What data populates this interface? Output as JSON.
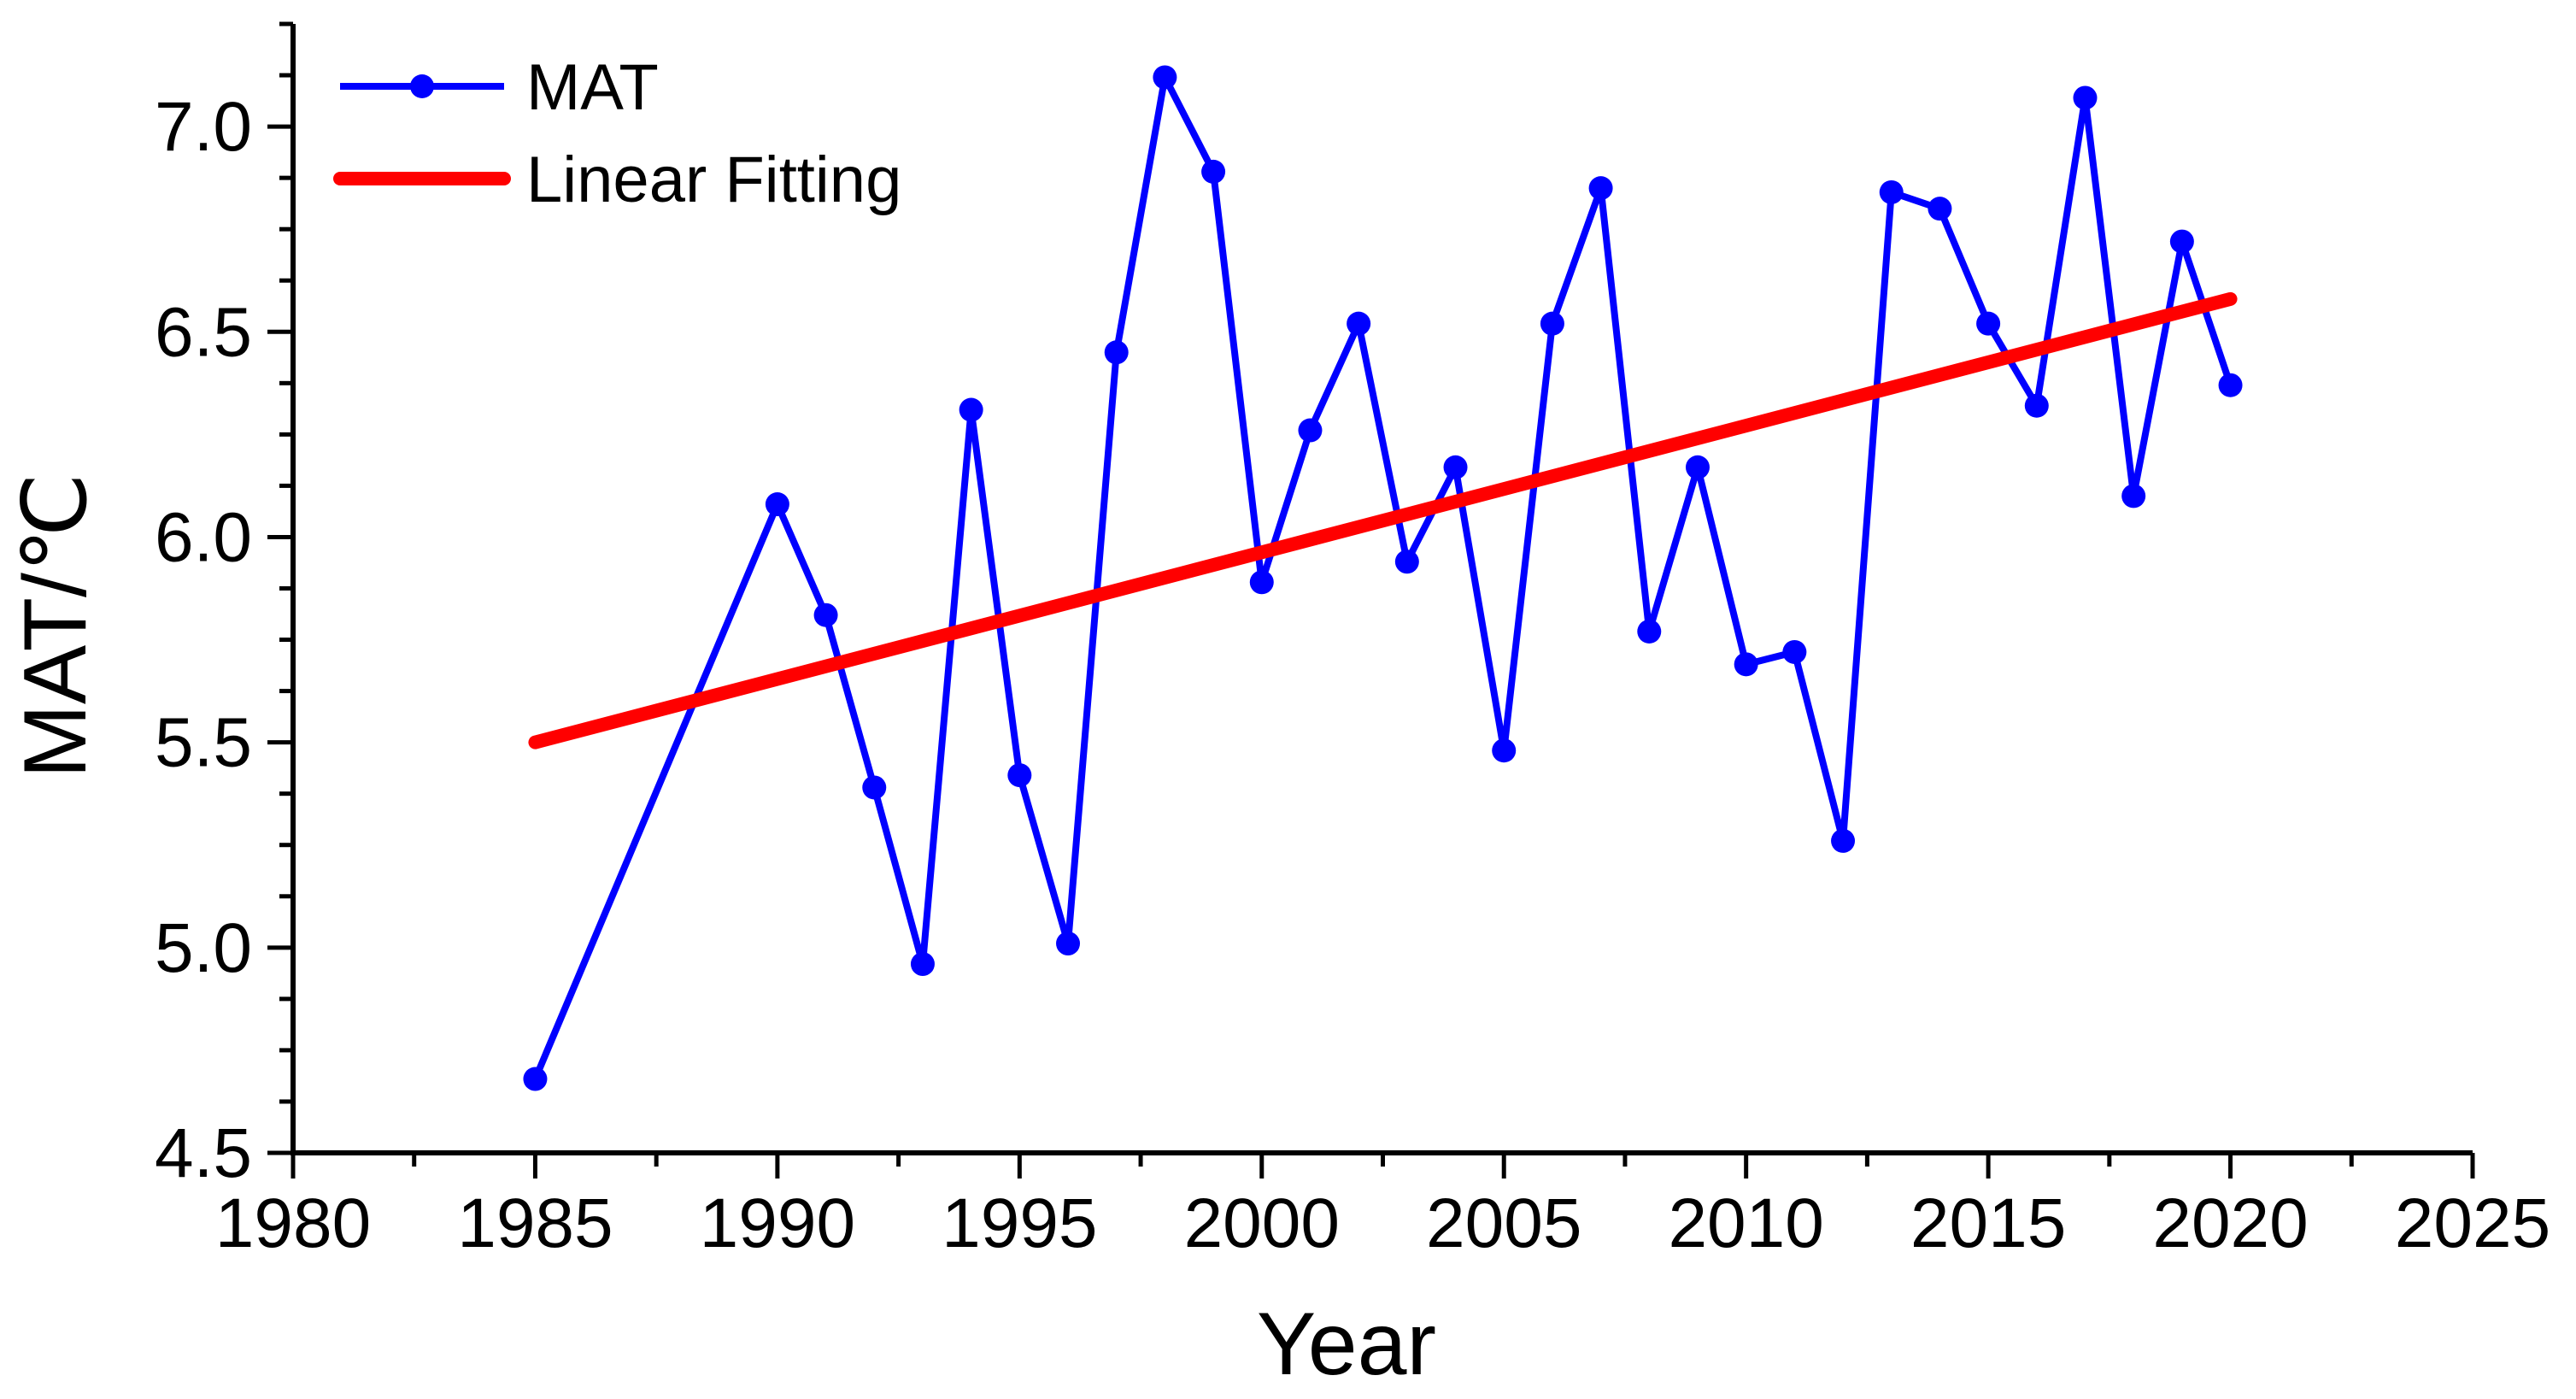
{
  "chart_data": {
    "type": "line",
    "title": "",
    "xlabel": "Year",
    "ylabel": "MAT/℃",
    "xlim": [
      1980,
      2025
    ],
    "ylim": [
      4.5,
      7.25
    ],
    "x_ticks": [
      "1980",
      "1985",
      "1990",
      "1995",
      "2000",
      "2005",
      "2010",
      "2015",
      "2020",
      "2025"
    ],
    "y_ticks": [
      "4.5",
      "5.0",
      "5.5",
      "6.0",
      "6.5",
      "7.0"
    ],
    "legend_position": "top-left",
    "series": [
      {
        "name": "MAT",
        "color": "#0000ff",
        "marker": "circle",
        "x": [
          1985,
          1990,
          1991,
          1992,
          1993,
          1994,
          1995,
          1996,
          1997,
          1998,
          1999,
          2000,
          2001,
          2002,
          2003,
          2004,
          2005,
          2006,
          2007,
          2008,
          2009,
          2010,
          2011,
          2012,
          2013,
          2014,
          2015,
          2016,
          2017,
          2018,
          2019,
          2020
        ],
        "values": [
          4.68,
          6.08,
          5.81,
          5.39,
          4.96,
          6.31,
          5.42,
          5.01,
          6.45,
          7.12,
          6.89,
          5.89,
          6.26,
          6.52,
          5.94,
          6.17,
          5.48,
          6.52,
          6.85,
          5.77,
          6.17,
          5.69,
          5.72,
          5.26,
          6.84,
          6.8,
          6.52,
          6.32,
          7.07,
          6.1,
          6.72,
          6.37
        ]
      },
      {
        "name": "Linear Fitting",
        "color": "#ff0000",
        "x": [
          1985,
          2020
        ],
        "values": [
          5.5,
          6.58
        ]
      }
    ]
  }
}
